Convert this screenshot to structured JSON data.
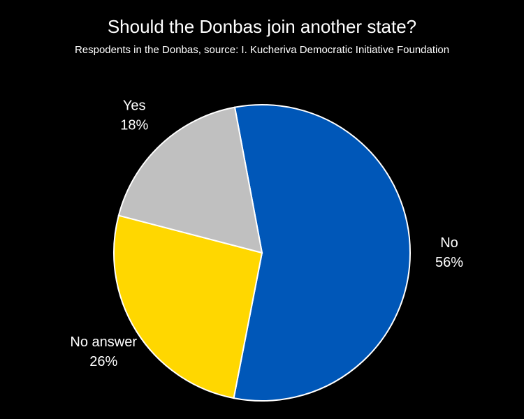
{
  "chart_data": {
    "type": "pie",
    "title": "Should the Donbas join another state?",
    "subtitle": "Respodents in the Donbas, source: I. Kucheriva Democratic Initiative Foundation",
    "categories": [
      "No",
      "No answer",
      "Yes"
    ],
    "values": [
      56,
      26,
      18
    ],
    "value_labels": [
      "56%",
      "26%",
      "18%"
    ],
    "colors": [
      "#0057b8",
      "#ffd700",
      "#c0c0c0"
    ]
  }
}
